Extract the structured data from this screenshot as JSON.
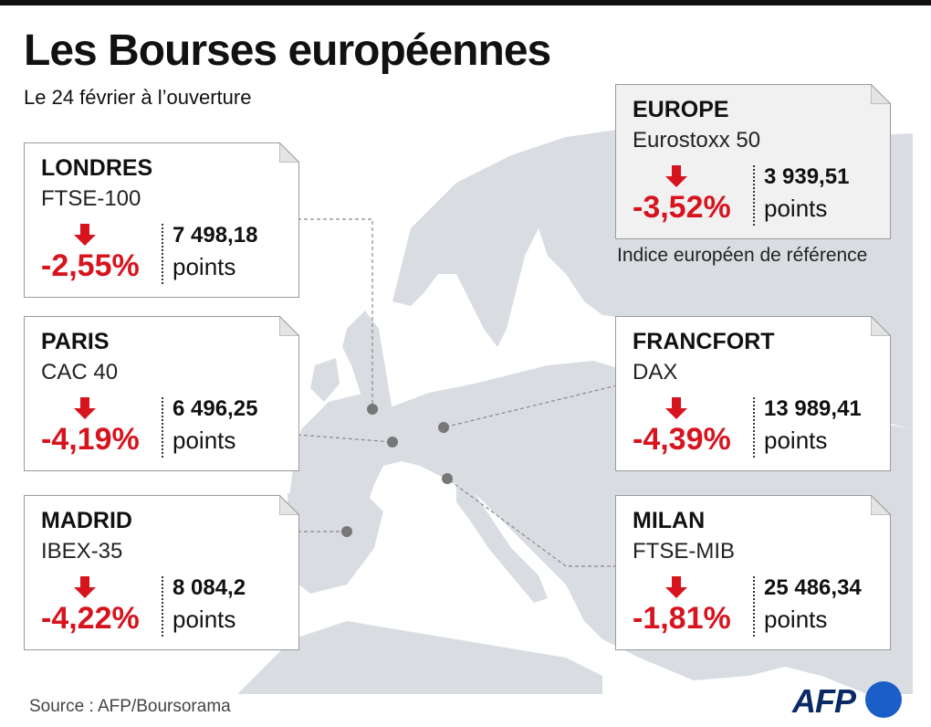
{
  "title": "Les Bourses européennes",
  "subtitle": "Le 24 février à l’ouverture",
  "colors": {
    "down": "#d7141e",
    "card_border": "#9a9a9a",
    "map_land": "#d9dde2",
    "brand": "#0a2a66"
  },
  "icons": {
    "change": "arrow-down-icon"
  },
  "markets": [
    {
      "city": "LONDRES",
      "index": "FTSE-100",
      "change": "-2,55%",
      "value": "7 498,18",
      "unit": "points"
    },
    {
      "city": "PARIS",
      "index": "CAC 40",
      "change": "-4,19%",
      "value": "6 496,25",
      "unit": "points"
    },
    {
      "city": "MADRID",
      "index": "IBEX-35",
      "change": "-4,22%",
      "value": "8 084,2",
      "unit": "points"
    },
    {
      "city": "EUROPE",
      "index": "Eurostoxx 50",
      "change": "-3,52%",
      "value": "3 939,51",
      "unit": "points",
      "note": "Indice européen de référence"
    },
    {
      "city": "FRANCFORT",
      "index": "DAX",
      "change": "-4,39%",
      "value": "13 989,41",
      "unit": "points"
    },
    {
      "city": "MILAN",
      "index": "FTSE-MIB",
      "change": "-1,81%",
      "value": "25 486,34",
      "unit": "points"
    }
  ],
  "source": "Source : AFP/Boursorama",
  "logo": "AFP"
}
